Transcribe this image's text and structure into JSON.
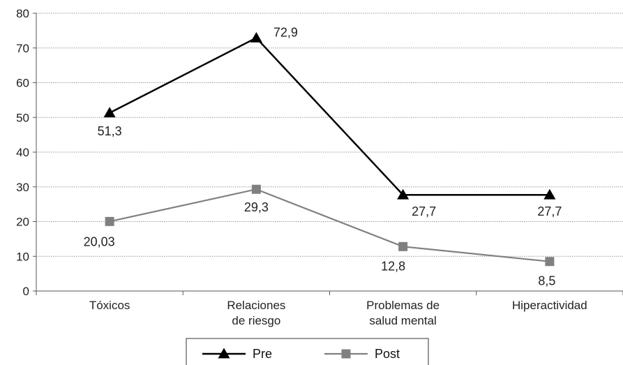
{
  "chart_data": {
    "type": "line",
    "categories": [
      [
        "Tóxicos"
      ],
      [
        "Relaciones",
        "de riesgo"
      ],
      [
        "Problemas de",
        "salud mental"
      ],
      [
        "Hiperactividad"
      ]
    ],
    "ylim": [
      0,
      80
    ],
    "yticks": [
      0,
      10,
      20,
      30,
      40,
      50,
      60,
      70,
      80
    ],
    "grid": true,
    "legend_position": "bottom",
    "series": [
      {
        "name": "Pre",
        "values": [
          51.3,
          72.9,
          27.7,
          27.7
        ],
        "labels": [
          "51,3",
          "72,9",
          "27,7",
          "27,7"
        ],
        "color": "#000000",
        "marker": "triangle"
      },
      {
        "name": "Post",
        "values": [
          20.03,
          29.3,
          12.8,
          8.5
        ],
        "labels": [
          "20,03",
          "29,3",
          "12,8",
          "8,5"
        ],
        "color": "#808080",
        "marker": "square"
      }
    ]
  }
}
